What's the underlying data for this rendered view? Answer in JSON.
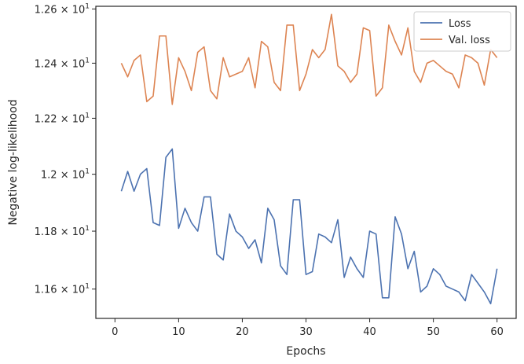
{
  "chart_data": {
    "type": "line",
    "xlabel": "Epochs",
    "ylabel": "Negative log-likelihood",
    "xlim": [
      -3,
      63
    ],
    "ylim": [
      11.5,
      12.61
    ],
    "yscale": "log",
    "grid": false,
    "legend_position": "top-right",
    "xticks": [
      0,
      10,
      20,
      30,
      40,
      50,
      60
    ],
    "yticks": [
      {
        "value": 11.6,
        "mantissa": "1.16",
        "exponent": "1"
      },
      {
        "value": 11.8,
        "mantissa": "1.18",
        "exponent": "1"
      },
      {
        "value": 12.0,
        "mantissa": "1.2",
        "exponent": "1"
      },
      {
        "value": 12.2,
        "mantissa": "1.22",
        "exponent": "1"
      },
      {
        "value": 12.4,
        "mantissa": "1.24",
        "exponent": "1"
      },
      {
        "value": 12.6,
        "mantissa": "1.26",
        "exponent": "1"
      }
    ],
    "x": [
      1,
      2,
      3,
      4,
      5,
      6,
      7,
      8,
      9,
      10,
      11,
      12,
      13,
      14,
      15,
      16,
      17,
      18,
      19,
      20,
      21,
      22,
      23,
      24,
      25,
      26,
      27,
      28,
      29,
      30,
      31,
      32,
      33,
      34,
      35,
      36,
      37,
      38,
      39,
      40,
      41,
      42,
      43,
      44,
      45,
      46,
      47,
      48,
      49,
      50,
      51,
      52,
      53,
      54,
      55,
      56,
      57,
      58,
      59,
      60
    ],
    "series": [
      {
        "name": "Loss",
        "color": "#4c72b0",
        "values": [
          11.94,
          12.01,
          11.94,
          12.0,
          12.02,
          11.83,
          11.82,
          12.06,
          12.09,
          11.81,
          11.88,
          11.83,
          11.8,
          11.92,
          11.92,
          11.72,
          11.7,
          11.86,
          11.8,
          11.78,
          11.74,
          11.77,
          11.69,
          11.88,
          11.84,
          11.68,
          11.65,
          11.91,
          11.91,
          11.65,
          11.66,
          11.79,
          11.78,
          11.76,
          11.84,
          11.64,
          11.71,
          11.67,
          11.64,
          11.8,
          11.79,
          11.57,
          11.57,
          11.85,
          11.79,
          11.67,
          11.73,
          11.59,
          11.61,
          11.67,
          11.65,
          11.61,
          11.6,
          11.59,
          11.56,
          11.65,
          11.62,
          11.59,
          11.55,
          11.67
        ]
      },
      {
        "name": "Val. loss",
        "color": "#dd8452",
        "values": [
          12.4,
          12.35,
          12.41,
          12.43,
          12.26,
          12.28,
          12.5,
          12.5,
          12.25,
          12.42,
          12.37,
          12.3,
          12.44,
          12.46,
          12.3,
          12.27,
          12.42,
          12.35,
          12.36,
          12.37,
          12.42,
          12.31,
          12.48,
          12.46,
          12.33,
          12.3,
          12.54,
          12.54,
          12.3,
          12.36,
          12.45,
          12.42,
          12.45,
          12.58,
          12.39,
          12.37,
          12.33,
          12.36,
          12.53,
          12.52,
          12.28,
          12.31,
          12.54,
          12.48,
          12.43,
          12.53,
          12.37,
          12.33,
          12.4,
          12.41,
          12.39,
          12.37,
          12.36,
          12.31,
          12.43,
          12.42,
          12.4,
          12.32,
          12.45,
          12.42
        ]
      }
    ]
  }
}
